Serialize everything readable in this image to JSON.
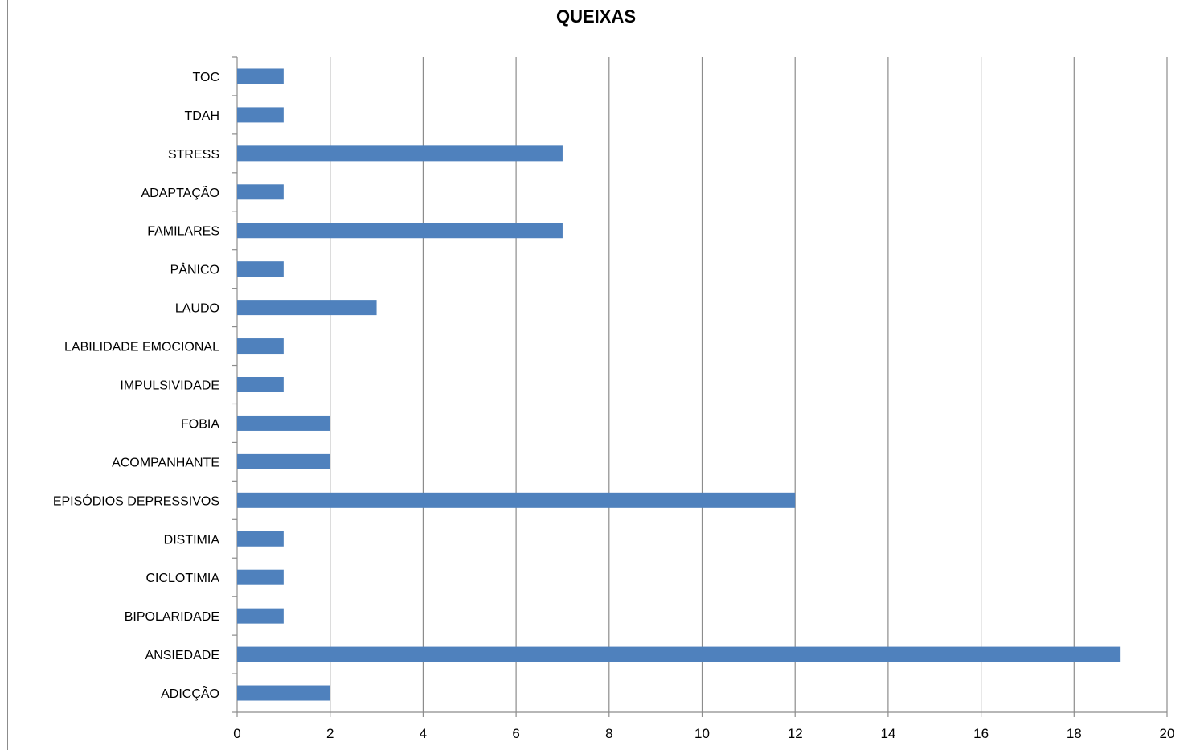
{
  "chart_data": {
    "type": "bar",
    "orientation": "horizontal",
    "title": "QUEIXAS",
    "xlabel": "",
    "ylabel": "",
    "xlim": [
      0,
      20
    ],
    "x_ticks": [
      "0",
      "2",
      "4",
      "6",
      "8",
      "10",
      "12",
      "14",
      "16",
      "18",
      "20"
    ],
    "grid": "vertical",
    "legend": "none",
    "bar_color": "#4f81bd",
    "categories": [
      "TOC",
      "TDAH",
      "STRESS",
      "ADAPTAÇÃO",
      "FAMILARES",
      "PÂNICO",
      "LAUDO",
      "LABILIDADE EMOCIONAL",
      "IMPULSIVIDADE",
      "FOBIA",
      "ACOMPANHANTE",
      "EPISÓDIOS DEPRESSIVOS",
      "DISTIMIA",
      "CICLOTIMIA",
      "BIPOLARIDADE",
      "ANSIEDADE",
      "ADICÇÃO"
    ],
    "values": [
      1,
      1,
      7,
      1,
      7,
      1,
      3,
      1,
      1,
      2,
      2,
      12,
      1,
      1,
      1,
      19,
      2
    ]
  }
}
